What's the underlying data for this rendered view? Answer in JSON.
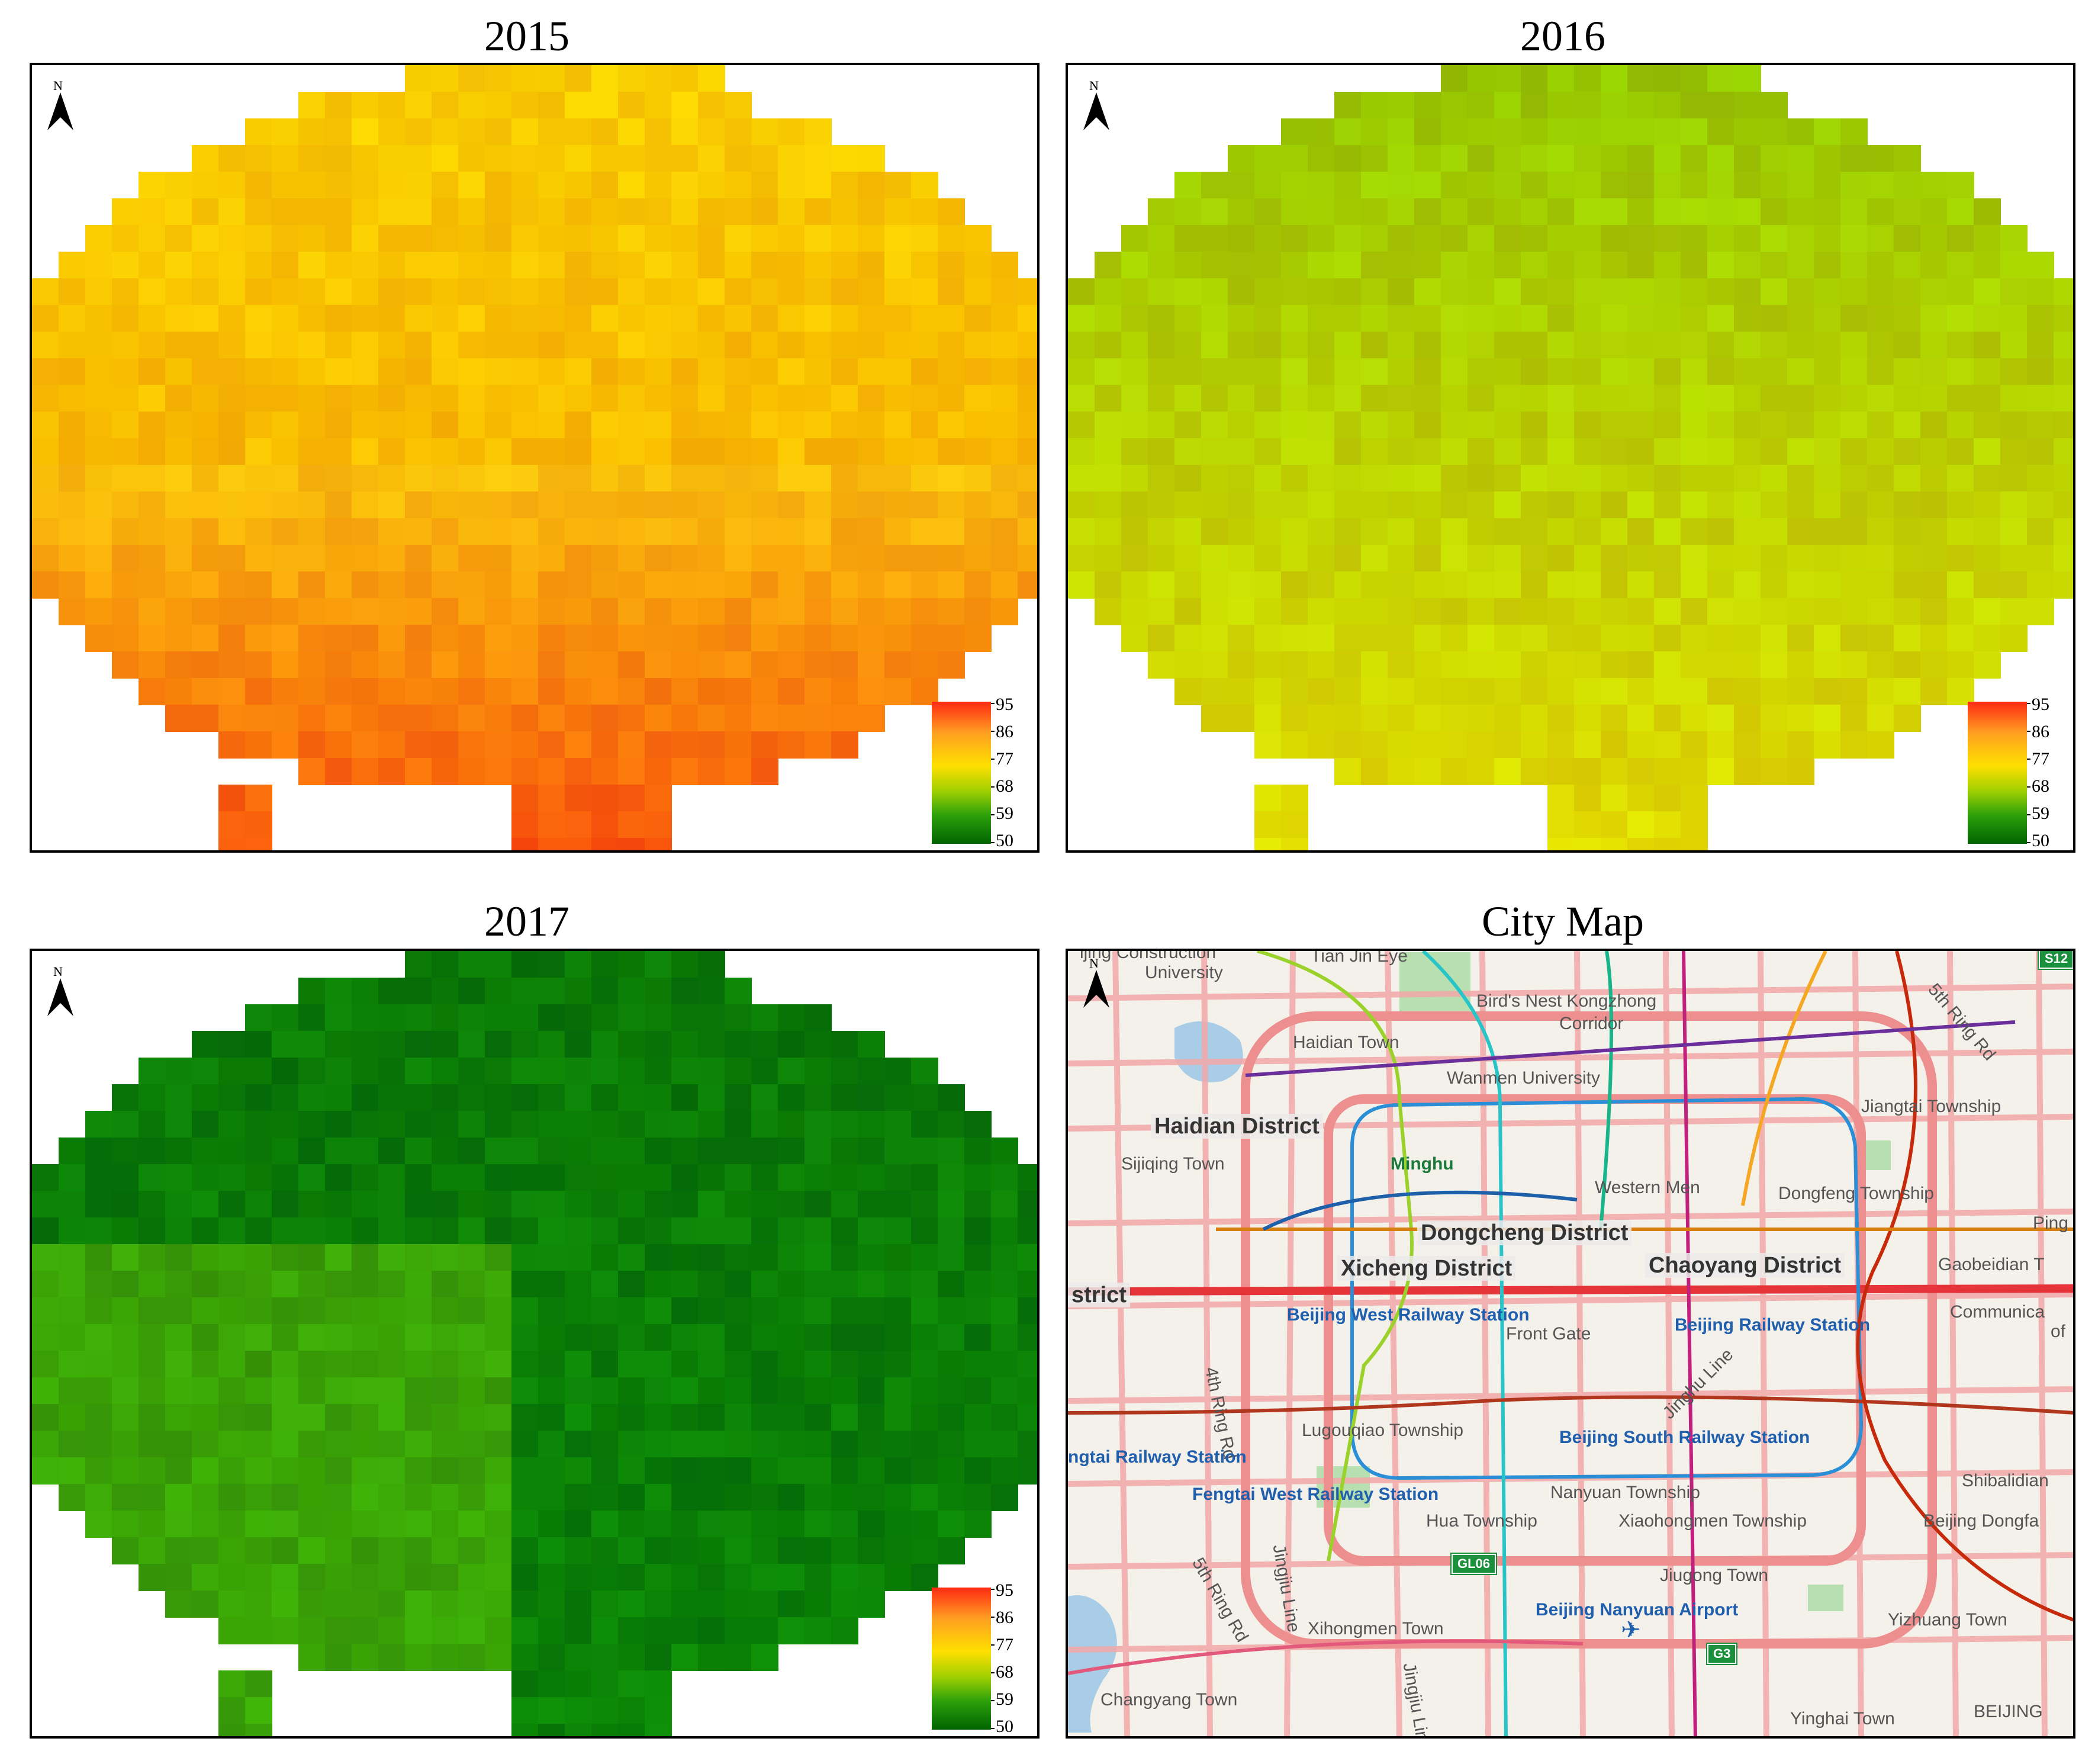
{
  "panels": [
    {
      "title": "2015",
      "palette_base": "#f5b400"
    },
    {
      "title": "2016",
      "palette_base": "#b5d400"
    },
    {
      "title": "2017",
      "palette_base": "#1c8c0a"
    },
    {
      "title": "City Map"
    }
  ],
  "north_label": "N",
  "legend": {
    "ticks": [
      "95",
      "86",
      "77",
      "68",
      "59",
      "50"
    ],
    "colors": [
      "#ff2a14",
      "#ffa020",
      "#ffe000",
      "#9fcf00",
      "#2ca00b",
      "#006400"
    ]
  },
  "city_map": {
    "districts": [
      "Haidian District",
      "Dongcheng District",
      "Xicheng District",
      "Chaoyang District",
      "strict"
    ],
    "towns": [
      "ijing Construction",
      "University",
      "Tian Jin Eye",
      "Bird's Nest Kongzhong",
      "Corridor",
      "Haidian Town",
      "Wanmen University",
      "Jiangtai Township",
      "Sijiqing Town",
      "Western Men",
      "Dongfeng Township",
      "Ping",
      "Gaobeidian T",
      "Front Gate",
      "Communica",
      "of",
      "Lugouqiao Township",
      "Nanyuan Township",
      "Hua Township",
      "Xiaohongmen Township",
      "Beijing Dongfa",
      "Shibalidian",
      "Jiugong Town",
      "Xihongmen Town",
      "Yizhuang Town",
      "Changyang Town",
      "Yinghai Town",
      "BEIJING",
      "4th Ring Rd",
      "5th Ring Rd",
      "5th Ring Rd",
      "Jinghu Line",
      "Jingjiu Line",
      "Jingjiu Line"
    ],
    "stations": [
      "Beijing West Railway Station",
      "Beijing Railway Station",
      "Beijing South Railway Station",
      "ngtai Railway Station",
      "Fengtai West Railway Station",
      "Beijing Nanyuan Airport"
    ],
    "green_labels": [
      "Minghu"
    ],
    "badges": [
      "GL06",
      "G3",
      "S12"
    ]
  }
}
